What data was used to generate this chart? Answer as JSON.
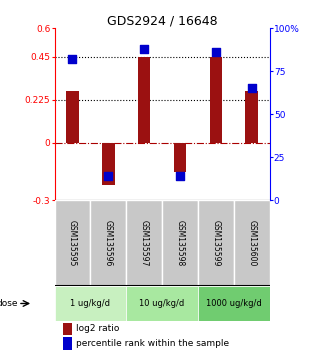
{
  "title": "GDS2924 / 16648",
  "samples": [
    "GSM135595",
    "GSM135596",
    "GSM135597",
    "GSM135598",
    "GSM135599",
    "GSM135600"
  ],
  "log2_ratios": [
    0.27,
    -0.22,
    0.45,
    -0.155,
    0.45,
    0.27
  ],
  "percentiles": [
    82,
    14,
    88,
    14,
    86,
    65
  ],
  "ylim_left": [
    -0.3,
    0.6
  ],
  "ylim_right": [
    0,
    100
  ],
  "yticks_left": [
    -0.3,
    0,
    0.225,
    0.45,
    0.6
  ],
  "yticks_right": [
    0,
    25,
    50,
    75,
    100
  ],
  "ytick_labels_left": [
    "-0.3",
    "0",
    "0.225",
    "0.45",
    "0.6"
  ],
  "ytick_labels_right": [
    "0",
    "25",
    "50",
    "75",
    "100%"
  ],
  "hlines_dotted": [
    0.225,
    0.45
  ],
  "hline_dashed_color": "#AA0000",
  "bar_color": "#9B1111",
  "dot_color": "#0000CC",
  "dose_groups": [
    {
      "label": "1 ug/kg/d",
      "samples": [
        0,
        1
      ],
      "color": "#C8F0C0"
    },
    {
      "label": "10 ug/kg/d",
      "samples": [
        2,
        3
      ],
      "color": "#A8E8A0"
    },
    {
      "label": "1000 ug/kg/d",
      "samples": [
        4,
        5
      ],
      "color": "#70CC70"
    }
  ],
  "legend_bar_label": "log2 ratio",
  "legend_dot_label": "percentile rank within the sample",
  "dose_label": "dose",
  "bar_width": 0.35,
  "dot_size": 28,
  "sample_bg_color": "#C8C8C8",
  "sample_border_color": "#FFFFFF"
}
